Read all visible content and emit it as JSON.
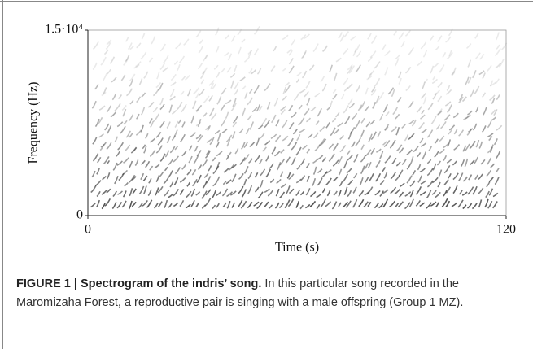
{
  "chart_data": {
    "type": "spectrogram",
    "xlabel": "Time (s)",
    "ylabel": "Frequency (Hz)",
    "xlim": [
      0,
      120
    ],
    "xticks": [
      0,
      120
    ],
    "ylim": [
      0,
      15000
    ],
    "yticks": [
      0,
      {
        "value": 15000,
        "label": "1.5·10⁴"
      }
    ]
  },
  "caption": {
    "title": "FIGURE 1 | Spectrogram of the indris’ song.",
    "text": "In this particular song recorded in the Maromizaha Forest, a reproductive pair is singing with a male offspring (Group 1 MZ)."
  }
}
